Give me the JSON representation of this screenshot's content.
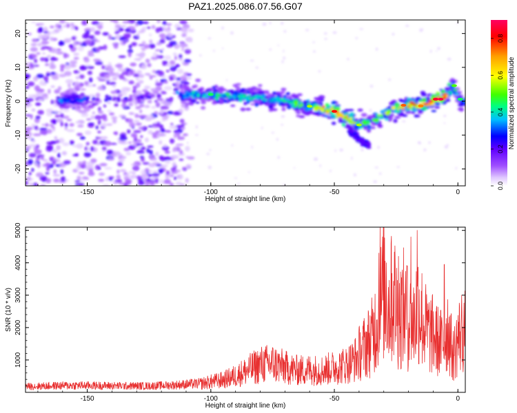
{
  "title": "PAZ1.2025.086.07.56.G07",
  "chart_data": [
    {
      "type": "heatmap",
      "xlabel": "Height of straight line (km)",
      "ylabel": "Frequency (Hz)",
      "xlim": [
        -175,
        3
      ],
      "ylim": [
        -25,
        24
      ],
      "xticks": [
        -150,
        -100,
        -50,
        0
      ],
      "xtick_labels": [
        "-150",
        "-100",
        "-50",
        "0"
      ],
      "yticks": [
        20,
        10,
        0,
        -10,
        -20
      ],
      "ytick_labels": [
        "20",
        "10",
        "0",
        "-10",
        "-20"
      ],
      "colorbar": {
        "label": "Normalized spectral amplitude",
        "range": [
          0.0,
          0.9
        ],
        "ticks": [
          0.0,
          0.2,
          0.4,
          0.6,
          0.8
        ],
        "tick_labels": [
          "0.0",
          "0.2",
          "0.4",
          "0.6",
          "0.8"
        ],
        "colormap": [
          "#ffffff",
          "#e0c8ff",
          "#a050ff",
          "#6000ff",
          "#0000ff",
          "#00c0ff",
          "#00ff80",
          "#40ff00",
          "#ffff00",
          "#ffa000",
          "#ff0000",
          "#ff0060"
        ]
      },
      "ridge": {
        "x": [
          -160,
          -150,
          -130,
          -115,
          -105,
          -90,
          -80,
          -70,
          -60,
          -50,
          -40,
          -35,
          -30,
          -25,
          -20,
          -15,
          -10,
          -5,
          -2,
          0,
          2
        ],
        "y": [
          0.2,
          0.5,
          1.0,
          2.0,
          2.0,
          1.5,
          1.0,
          0.0,
          -1.5,
          -3.0,
          -7.0,
          -6.0,
          -4.0,
          -2.0,
          -1.0,
          -1.5,
          0.0,
          1.5,
          4.5,
          1.0,
          0.0
        ],
        "amplitude": [
          0.3,
          0.3,
          0.2,
          0.3,
          0.4,
          0.45,
          0.4,
          0.45,
          0.5,
          0.8,
          0.5,
          0.45,
          0.5,
          0.6,
          0.7,
          0.75,
          0.85,
          0.8,
          0.45,
          0.4,
          0.35
        ]
      },
      "grid": false
    },
    {
      "type": "line",
      "xlabel": "Height of straight line (km)",
      "ylabel": "SNR (10 * v/v)",
      "xlim": [
        -175,
        3
      ],
      "ylim": [
        0,
        5100
      ],
      "xticks": [
        -150,
        -100,
        -50,
        0
      ],
      "xtick_labels": [
        "-150",
        "-100",
        "-50",
        "0"
      ],
      "yticks": [
        1000,
        2000,
        3000,
        4000,
        5000
      ],
      "ytick_labels": [
        "1000",
        "2000",
        "3000",
        "4000",
        "5000"
      ],
      "series": [
        {
          "color": "#e83030",
          "x": [
            -175,
            -165,
            -155,
            -145,
            -135,
            -125,
            -115,
            -105,
            -100,
            -95,
            -90,
            -85,
            -80,
            -75,
            -70,
            -65,
            -60,
            -55,
            -50,
            -45,
            -40,
            -35,
            -32,
            -30,
            -28,
            -26,
            -24,
            -22,
            -20,
            -18,
            -16,
            -14,
            -12,
            -10,
            -8,
            -6,
            -4,
            -2,
            0,
            2,
            3
          ],
          "y": [
            200,
            220,
            240,
            230,
            220,
            220,
            250,
            300,
            380,
            450,
            600,
            800,
            1000,
            1050,
            900,
            800,
            820,
            800,
            900,
            1000,
            1300,
            1800,
            2600,
            3500,
            2800,
            3300,
            2500,
            2800,
            2400,
            2300,
            3000,
            2300,
            2000,
            1900,
            1700,
            1600,
            2200,
            1200,
            1800,
            2100,
            2000
          ],
          "peaks": [
            [
              -31.5,
              5100
            ],
            [
              -27,
              4600
            ],
            [
              -24,
              4200
            ],
            [
              -19,
              4800
            ],
            [
              -16.5,
              5000
            ],
            [
              -5.5,
              3950
            ],
            [
              -32,
              4300
            ],
            [
              -29,
              4000
            ],
            [
              -20.5,
              3900
            ]
          ]
        }
      ],
      "grid": false
    }
  ]
}
